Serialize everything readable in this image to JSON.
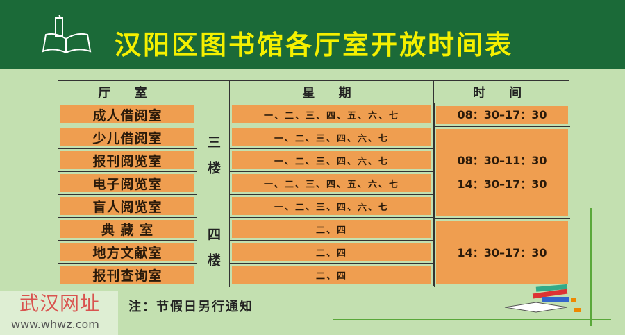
{
  "title": "汉阳区图书馆各厅室开放时间表",
  "headers": {
    "room": "厅 室",
    "days": "星 期",
    "time": "时 间"
  },
  "floors": {
    "third": "三楼",
    "fourth": "四楼"
  },
  "rows": [
    {
      "room": "成人借阅室",
      "days": "一、二、三、四、五、六、七"
    },
    {
      "room": "少儿借阅室",
      "days": "一、二、三、四、六、七"
    },
    {
      "room": "报刊阅览室",
      "days": "一、二、三、四、六、七"
    },
    {
      "room": "电子阅览室",
      "days": "一、二、三、四、五、六、七"
    },
    {
      "room": "盲人阅览室",
      "days": "一、二、三、四、六、七"
    },
    {
      "room": "典 藏 室",
      "days": "二、四"
    },
    {
      "room": "地方文献室",
      "days": "二、四"
    },
    {
      "room": "报刊查询室",
      "days": "二、四"
    }
  ],
  "times": {
    "adult": "08：30–17：30",
    "morning": "08：30–11：30",
    "afternoon": "14：30–17：30",
    "fourth": "14：30–17：30"
  },
  "note": "注：节假日另行通知",
  "watermark": {
    "name": "武汉网址",
    "url": "www.whwz.com"
  },
  "colors": {
    "header": "#1b6a38",
    "title": "#f5f000",
    "cell": "#ef9e50",
    "background": "#c3e0b0"
  }
}
